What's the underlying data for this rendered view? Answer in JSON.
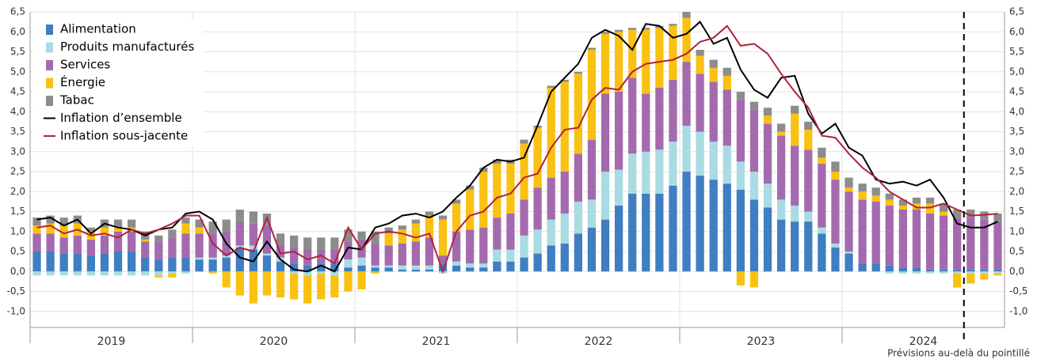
{
  "chart_data": {
    "type": "stacked-bar-line",
    "categories": [
      null,
      null,
      null,
      null,
      null,
      null,
      null,
      null,
      null,
      null,
      null,
      null,
      null,
      null,
      null,
      null,
      null,
      null,
      null,
      null,
      null,
      null,
      null,
      null,
      null,
      null,
      null,
      null,
      null,
      null,
      null,
      null,
      null,
      null,
      null,
      null,
      null,
      null,
      null,
      null,
      null,
      null,
      null,
      null,
      null,
      null,
      null,
      null,
      null,
      null,
      null,
      null,
      null,
      null,
      null,
      null,
      null,
      null,
      null,
      null,
      null,
      null,
      null,
      null,
      null,
      null,
      null,
      null,
      null,
      null,
      null,
      null
    ],
    "x_groups": [
      "2019",
      "2020",
      "2021",
      "2022",
      "2023",
      "2024"
    ],
    "series": [
      {
        "name": "Alimentation",
        "kind": "bar",
        "color": "#3f7ec1",
        "values": [
          0.5,
          0.5,
          0.45,
          0.45,
          0.4,
          0.45,
          0.5,
          0.5,
          0.35,
          0.3,
          0.35,
          0.35,
          0.3,
          0.3,
          0.35,
          0.6,
          0.55,
          0.4,
          0.25,
          0.2,
          0.15,
          0.2,
          0.2,
          0.1,
          0.15,
          0.1,
          0.1,
          0.05,
          0.05,
          0.05,
          0.2,
          0.15,
          0.1,
          0.1,
          0.25,
          0.25,
          0.35,
          0.45,
          0.65,
          0.7,
          0.95,
          1.1,
          1.3,
          1.65,
          1.95,
          1.95,
          1.95,
          2.15,
          2.5,
          2.4,
          2.3,
          2.2,
          2.05,
          1.8,
          1.6,
          1.3,
          1.25,
          1.25,
          0.95,
          0.6,
          0.45,
          0.2,
          0.2,
          0.15,
          0.1,
          0.1,
          0.05,
          0.05,
          0.05,
          0.05,
          0.05,
          0.05
        ]
      },
      {
        "name": "Produits manufacturés",
        "kind": "bar",
        "color": "#a9dbe2",
        "values": [
          -0.1,
          -0.1,
          -0.1,
          -0.1,
          -0.1,
          -0.1,
          -0.1,
          -0.1,
          -0.1,
          -0.1,
          -0.05,
          -0.05,
          0.05,
          0.05,
          0.05,
          0.05,
          0.1,
          0.05,
          0.1,
          -0.05,
          -0.1,
          -0.05,
          -0.1,
          0.2,
          0.2,
          0.05,
          0.05,
          0.1,
          0.1,
          0.1,
          -0.05,
          0.1,
          0.1,
          0.1,
          0.3,
          0.3,
          0.55,
          0.6,
          0.65,
          0.75,
          0.8,
          0.7,
          1.2,
          0.9,
          1.0,
          1.05,
          1.1,
          1.1,
          1.15,
          1.1,
          0.95,
          0.95,
          0.7,
          0.7,
          0.6,
          0.5,
          0.4,
          0.25,
          0.15,
          0.1,
          0.05,
          0,
          0,
          -0.05,
          -0.05,
          -0.05,
          -0.05,
          -0.05,
          -0.05,
          -0.05,
          -0.05,
          -0.05
        ]
      },
      {
        "name": "Services",
        "kind": "bar",
        "color": "#a46aae",
        "values": [
          0.45,
          0.45,
          0.4,
          0.45,
          0.4,
          0.45,
          0.5,
          0.5,
          0.4,
          0.45,
          0.5,
          0.6,
          0.6,
          0.6,
          0.6,
          0.6,
          0.55,
          0.7,
          0.3,
          0.4,
          0.4,
          0.35,
          0.35,
          0.45,
          0.45,
          0.55,
          0.5,
          0.55,
          0.6,
          0.7,
          0.2,
          0.75,
          0.85,
          0.9,
          0.8,
          0.9,
          0.9,
          1.05,
          1.05,
          1.05,
          1.2,
          1.5,
          1.95,
          1.95,
          1.9,
          1.45,
          1.55,
          1.55,
          1.6,
          1.45,
          1.5,
          1.4,
          1.55,
          1.55,
          1.5,
          1.6,
          1.5,
          1.55,
          1.6,
          1.6,
          1.5,
          1.6,
          1.55,
          1.5,
          1.45,
          1.45,
          1.4,
          1.35,
          1.3,
          1.3,
          1.25,
          1.2
        ]
      },
      {
        "name": "Énergie",
        "kind": "bar",
        "color": "#f9c112",
        "values": [
          0.2,
          0.25,
          0.3,
          0.3,
          0.2,
          0.2,
          0.1,
          0.1,
          0.05,
          -0.05,
          -0.1,
          0.25,
          0.15,
          -0.05,
          -0.4,
          -0.6,
          -0.8,
          -0.6,
          -0.65,
          -0.65,
          -0.7,
          -0.65,
          -0.55,
          -0.5,
          -0.45,
          -0.05,
          0.3,
          0.35,
          0.45,
          0.55,
          0.9,
          0.7,
          1.0,
          1.4,
          1.35,
          1.25,
          1.4,
          1.5,
          2.25,
          2.25,
          2.0,
          2.25,
          1.5,
          1.5,
          1.2,
          1.6,
          1.5,
          1.35,
          1.1,
          0.45,
          0.35,
          0.35,
          -0.35,
          -0.4,
          0.2,
          0.1,
          0.8,
          0.5,
          0.15,
          0.2,
          0.1,
          0.2,
          0.15,
          0.15,
          0.1,
          0.15,
          0.25,
          0.1,
          -0.35,
          -0.25,
          -0.15,
          -0.05
        ]
      },
      {
        "name": "Tabac",
        "kind": "bar",
        "color": "#8c8c8c",
        "values": [
          0.2,
          0.2,
          0.2,
          0.2,
          0.1,
          0.2,
          0.2,
          0.2,
          0.2,
          0.15,
          0.2,
          0.15,
          0.2,
          0.3,
          0.3,
          0.3,
          0.3,
          0.3,
          0.3,
          0.3,
          0.3,
          0.3,
          0.3,
          0.3,
          0.2,
          0.3,
          0.15,
          0.1,
          0.1,
          0.1,
          0.1,
          0.1,
          0.1,
          0.1,
          0.1,
          0.1,
          0.1,
          0.05,
          0.05,
          0.05,
          0.05,
          0.05,
          0.05,
          0.05,
          0.05,
          0.05,
          0.05,
          0.05,
          0.15,
          0.15,
          0.2,
          0.2,
          0.2,
          0.2,
          0.2,
          0.2,
          0.2,
          0.2,
          0.25,
          0.25,
          0.25,
          0.2,
          0.2,
          0.15,
          0.15,
          0.15,
          0.15,
          0.2,
          0.2,
          0.2,
          0.2,
          0.2
        ]
      },
      {
        "name": "Inflation d’ensemble",
        "kind": "line",
        "color": "#000000",
        "values": [
          1.3,
          1.35,
          1.15,
          1.3,
          0.95,
          1.2,
          1.1,
          1.05,
          0.9,
          1.05,
          1.1,
          1.45,
          1.5,
          1.3,
          0.7,
          0.35,
          0.25,
          0.75,
          0.3,
          0.05,
          0.0,
          0.15,
          0.0,
          0.6,
          0.55,
          1.1,
          1.2,
          1.4,
          1.45,
          1.35,
          1.5,
          1.85,
          2.15,
          2.6,
          2.8,
          2.75,
          2.85,
          3.65,
          4.5,
          4.85,
          5.2,
          5.85,
          6.05,
          5.9,
          5.55,
          6.2,
          6.15,
          5.85,
          5.95,
          6.25,
          5.7,
          5.85,
          5.05,
          4.55,
          4.35,
          4.85,
          4.9,
          3.95,
          3.45,
          3.7,
          3.1,
          2.9,
          2.3,
          2.2,
          2.25,
          2.15,
          2.3,
          1.85,
          1.2,
          1.1,
          1.1,
          1.25
        ]
      },
      {
        "name": "Inflation sous-jacente",
        "kind": "line",
        "color": "#b0233a",
        "values": [
          1.1,
          1.15,
          0.95,
          1.05,
          0.9,
          0.95,
          0.85,
          1.05,
          0.95,
          1.05,
          1.2,
          1.4,
          1.4,
          0.7,
          0.4,
          0.6,
          0.5,
          1.35,
          0.45,
          0.5,
          0.3,
          0.4,
          0.2,
          1.1,
          0.55,
          0.95,
          1.0,
          0.95,
          0.85,
          0.95,
          0.0,
          1.0,
          1.4,
          1.5,
          1.85,
          1.95,
          2.35,
          2.45,
          3.1,
          3.55,
          3.6,
          4.3,
          4.6,
          4.55,
          5.0,
          5.2,
          5.25,
          5.3,
          5.45,
          5.75,
          5.85,
          6.15,
          5.65,
          5.7,
          5.45,
          4.95,
          4.5,
          4.1,
          3.4,
          3.35,
          2.95,
          2.6,
          2.35,
          2.0,
          1.8,
          1.6,
          1.6,
          1.7,
          1.55,
          1.4,
          1.42,
          1.45
        ]
      }
    ],
    "ylim": [
      -1.4,
      6.5
    ],
    "yticks": [
      {
        "value": -1,
        "label": "-1,0"
      },
      {
        "value": -0.5,
        "label": "-0,5"
      },
      {
        "value": 0,
        "label": "0,0"
      },
      {
        "value": 0.5,
        "label": "0,5"
      },
      {
        "value": 1,
        "label": "1,0"
      },
      {
        "value": 1.5,
        "label": "1,5"
      },
      {
        "value": 2,
        "label": "2,0"
      },
      {
        "value": 2.5,
        "label": "2,5"
      },
      {
        "value": 3,
        "label": "3,0"
      },
      {
        "value": 3.5,
        "label": "3,5"
      },
      {
        "value": 4,
        "label": "4,0"
      },
      {
        "value": 4.5,
        "label": "4,5"
      },
      {
        "value": 5,
        "label": "5,0"
      },
      {
        "value": 5.5,
        "label": "5,5"
      },
      {
        "value": 6,
        "label": "6,0"
      },
      {
        "value": 6.5,
        "label": "6,5"
      }
    ],
    "grid": true,
    "legend": "top-left",
    "forecast_start": 69,
    "note": "Prévisions au-delà du pointillé"
  }
}
